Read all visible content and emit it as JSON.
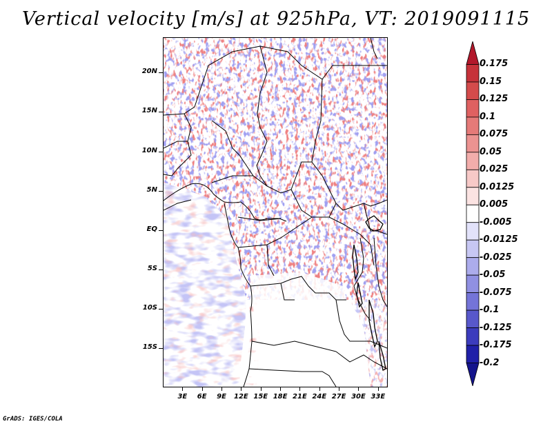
{
  "title": "Vertical velocity [m/s] at 925hPa, VT: 2019091115",
  "credit": "GrADS: IGES/COLA",
  "map": {
    "region": "Central Africa",
    "lat_labels": [
      "20N",
      "15N",
      "10N",
      "5N",
      "EQ",
      "5S",
      "10S",
      "15S"
    ],
    "lat_values": [
      20,
      15,
      10,
      5,
      0,
      -5,
      -10,
      -15
    ],
    "lon_labels": [
      "3E",
      "6E",
      "9E",
      "12E",
      "15E",
      "18E",
      "21E",
      "24E",
      "27E",
      "30E",
      "33E"
    ],
    "lon_values": [
      3,
      6,
      9,
      12,
      15,
      18,
      21,
      24,
      27,
      30,
      33
    ],
    "lat_range": [
      -20,
      24.5
    ],
    "lon_range": [
      0,
      34.5
    ]
  },
  "colorbar": {
    "labels": [
      "0.175",
      "0.15",
      "0.125",
      "0.1",
      "0.075",
      "0.05",
      "0.025",
      "0.0125",
      "0.005",
      "-0.005",
      "-0.0125",
      "-0.025",
      "-0.05",
      "-0.075",
      "-0.1",
      "-0.125",
      "-0.175",
      "-0.2"
    ],
    "colors": [
      "#b2182b",
      "#c6323a",
      "#d44b4b",
      "#df6161",
      "#e57a78",
      "#ec9391",
      "#f2adab",
      "#f7c9c7",
      "#fbe3e2",
      "#ffffff",
      "#e2e2fa",
      "#c7c7f3",
      "#acacec",
      "#9090e2",
      "#7474d8",
      "#5858cb",
      "#3c3cbd",
      "#2020a8",
      "#14148c"
    ]
  }
}
